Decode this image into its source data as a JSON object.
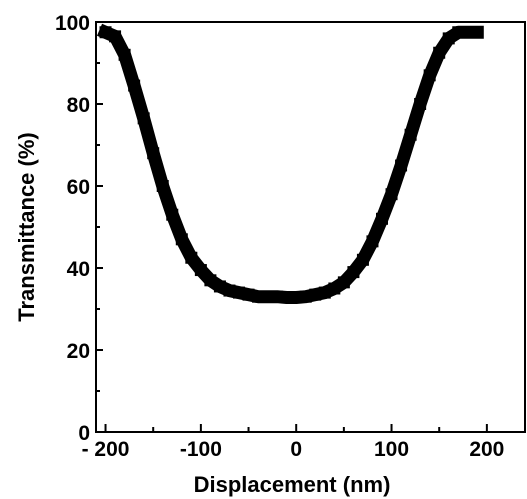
{
  "chart_data": {
    "type": "line",
    "title": "",
    "xlabel": "Displacement (nm)",
    "ylabel": "Transmittance (%)",
    "xlim": [
      -210,
      240
    ],
    "ylim": [
      0,
      100
    ],
    "x_ticks": [
      -200,
      -100,
      0,
      100,
      200
    ],
    "y_ticks": [
      0,
      20,
      40,
      60,
      80,
      100
    ],
    "x_tick_labels": [
      "- 200",
      "-100",
      "0",
      "100",
      "200"
    ],
    "y_tick_labels": [
      "0",
      "20",
      "40",
      "60",
      "80",
      "100"
    ],
    "grid": false,
    "legend": "none",
    "series": [
      {
        "color": "#000000",
        "x": [
          -200,
          -190,
          -180,
          -170,
          -160,
          -150,
          -140,
          -130,
          -120,
          -110,
          -100,
          -90,
          -80,
          -70,
          -60,
          -50,
          -40,
          -30,
          -20,
          -10,
          0,
          10,
          20,
          30,
          40,
          50,
          60,
          70,
          80,
          90,
          100,
          110,
          120,
          130,
          140,
          150,
          160,
          170,
          180,
          190
        ],
        "y": [
          97.5,
          96.5,
          92.0,
          84.5,
          76.5,
          68.0,
          60.0,
          53.0,
          47.0,
          42.5,
          39.5,
          37.0,
          35.5,
          34.5,
          34.0,
          33.5,
          33.0,
          33.0,
          33.0,
          32.8,
          32.8,
          33.0,
          33.5,
          34.0,
          35.0,
          36.5,
          39.0,
          42.0,
          46.5,
          52.0,
          58.0,
          65.0,
          72.5,
          80.0,
          87.0,
          92.5,
          96.0,
          97.5,
          97.5,
          97.5
        ]
      }
    ]
  }
}
